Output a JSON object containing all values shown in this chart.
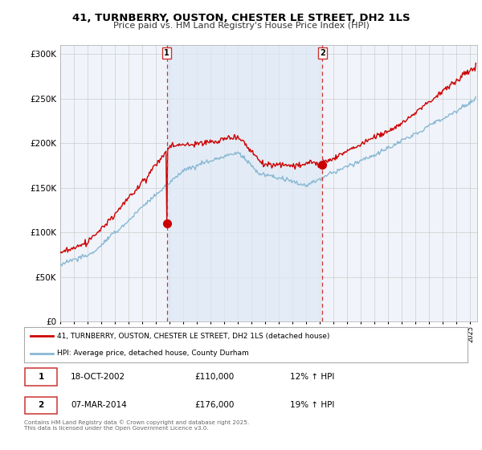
{
  "title": "41, TURNBERRY, OUSTON, CHESTER LE STREET, DH2 1LS",
  "subtitle": "Price paid vs. HM Land Registry's House Price Index (HPI)",
  "yticks": [
    0,
    50000,
    100000,
    150000,
    200000,
    250000,
    300000
  ],
  "ylim": [
    0,
    310000
  ],
  "xlim_start": 1995.0,
  "xlim_end": 2025.5,
  "sale1_date": 2002.79,
  "sale1_price": 110000,
  "sale1_label": "1",
  "sale2_date": 2014.17,
  "sale2_price": 176000,
  "sale2_label": "2",
  "line_color_red": "#cc0000",
  "line_color_blue": "#89b8d4",
  "vline_color": "#cc3333",
  "shade_color": "#deeaf5",
  "legend_label_red": "41, TURNBERRY, OUSTON, CHESTER LE STREET, DH2 1LS (detached house)",
  "legend_label_blue": "HPI: Average price, detached house, County Durham",
  "footer": "Contains HM Land Registry data © Crown copyright and database right 2025.\nThis data is licensed under the Open Government Licence v3.0.",
  "background_color": "#f0f4fa",
  "grid_color": "#cccccc"
}
